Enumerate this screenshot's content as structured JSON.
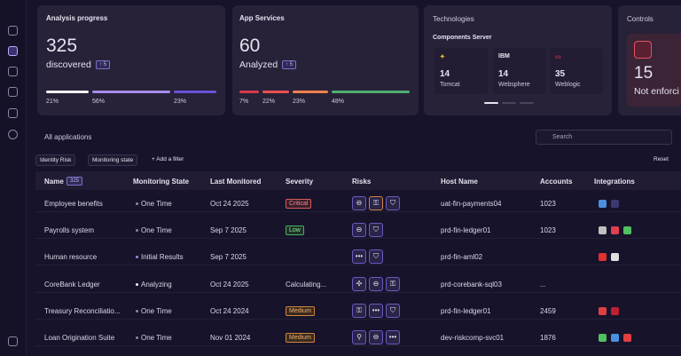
{
  "sidebar": {
    "help_icon": "?"
  },
  "cards": {
    "analysis": {
      "title": "Analysis progress",
      "value": "325",
      "label": "discovered",
      "badge": "↑ 5",
      "segments": [
        "21%",
        "56%",
        "23%"
      ]
    },
    "app_services": {
      "title": "App Services",
      "value": "60",
      "label": "Analyzed",
      "badge": "↑ 5",
      "segments": [
        "7%",
        "22%",
        "23%",
        "48%"
      ]
    },
    "technologies": {
      "title": "Technologies",
      "subtitle": "Components Server",
      "items": [
        {
          "logo": "✦",
          "count": "14",
          "name": "Tomcat"
        },
        {
          "logo": "IBM",
          "count": "14",
          "name": "Websphere"
        },
        {
          "logo": "▭",
          "count": "35",
          "name": "Weblogic"
        }
      ]
    },
    "controls": {
      "title": "Controls",
      "value": "15",
      "label": "Not enforci"
    }
  },
  "applications": {
    "title": "All applications",
    "search": "Search",
    "filters": [
      "Identity Risk",
      "Monitoring state"
    ],
    "add_filter": "+ Add a filter",
    "reset": "Reset"
  },
  "table": {
    "headers": [
      "Name",
      "Monitoring State",
      "Last Monitored",
      "Severity",
      "Risks",
      "Host Name",
      "Accounts",
      "Integrations"
    ],
    "name_count": "325",
    "rows": [
      [
        "Employee benefits",
        "One Time",
        "Oct 24 2025",
        "Critical",
        "uat-fin-payments04",
        "1023"
      ],
      [
        "Payrolls system",
        "One Time",
        "Sep 7 2025",
        "Low",
        "prd-fin-ledger01",
        "1023"
      ],
      [
        "Human resource",
        "Initial Results",
        "Sep 7 2025",
        null,
        "prd-fin-aml02",
        null
      ],
      [
        "CoreBank  Ledger",
        "Analyzing",
        "Oct 24 2025",
        "Calculating...",
        "prd-corebank-sql03",
        "..."
      ],
      [
        "Treasury Reconciliatio...",
        "One Time",
        "Oct 24 2024",
        "Medium",
        "prd-fin-ledger01",
        "2459"
      ],
      [
        "Loan Origination Suite",
        "One Time",
        "Nov 01 2024",
        "Medium",
        "dev-riskcomp-svc01",
        "1876"
      ]
    ]
  }
}
